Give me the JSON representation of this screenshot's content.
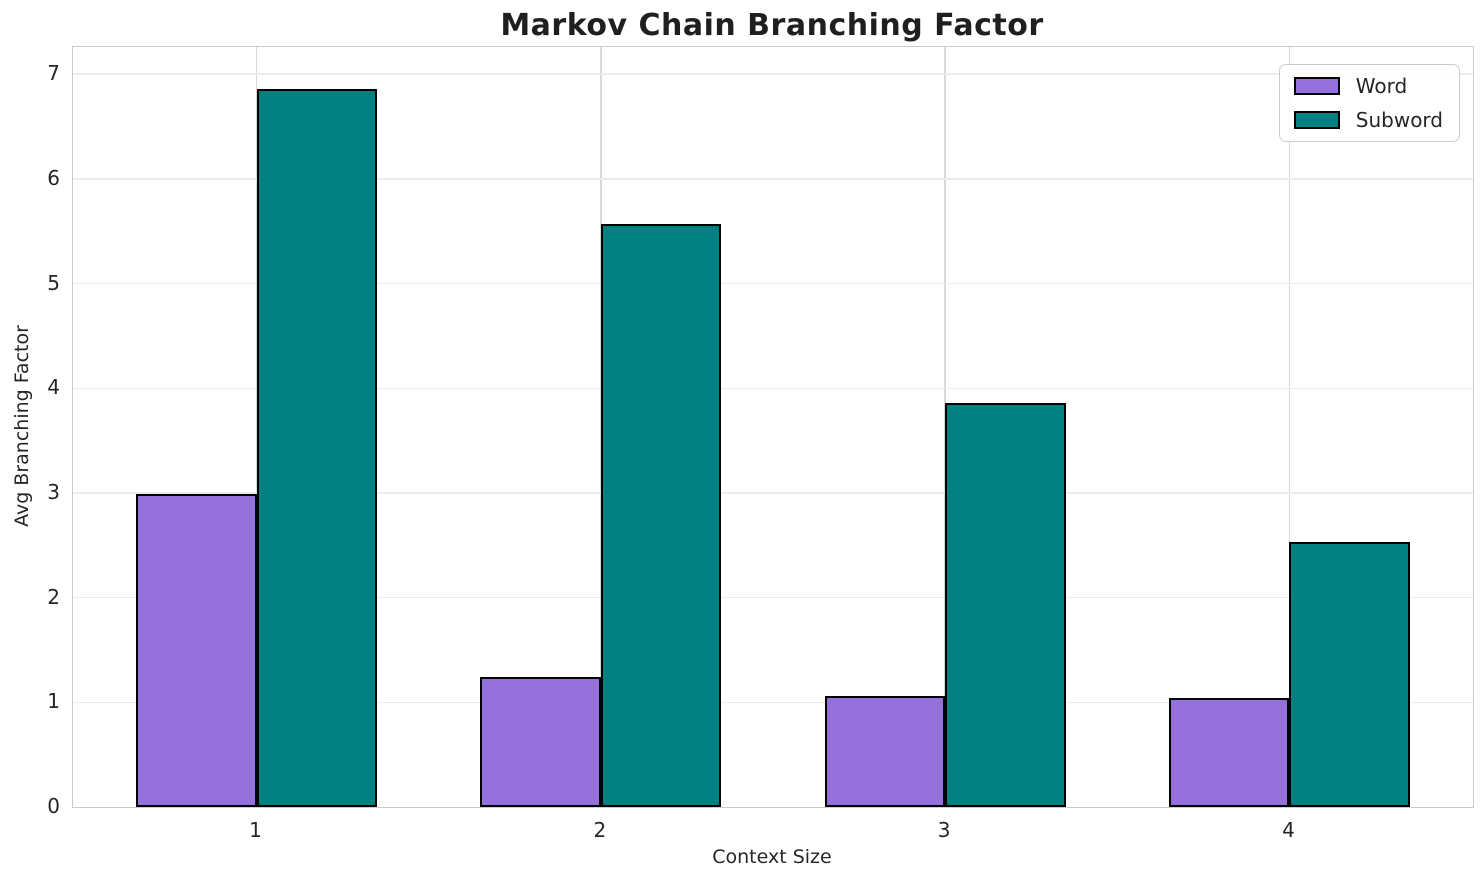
{
  "chart_data": {
    "type": "bar",
    "title": "Markov Chain Branching Factor",
    "xlabel": "Context Size",
    "ylabel": "Avg Branching Factor",
    "categories": [
      "1",
      "2",
      "3",
      "4"
    ],
    "series": [
      {
        "name": "Word",
        "color": "#9370DB",
        "values": [
          2.99,
          1.24,
          1.06,
          1.04
        ]
      },
      {
        "name": "Subword",
        "color": "#008080",
        "values": [
          6.86,
          5.57,
          3.86,
          2.53
        ]
      }
    ],
    "bar_width": 0.35,
    "ylim": [
      0,
      7.26
    ],
    "yticks": [
      0,
      1,
      2,
      3,
      4,
      5,
      6,
      7
    ],
    "grid": true,
    "legend_position": "upper right",
    "bar_edge_color": "#000000",
    "background_color": "#ffffff",
    "text_color": "#262626"
  }
}
